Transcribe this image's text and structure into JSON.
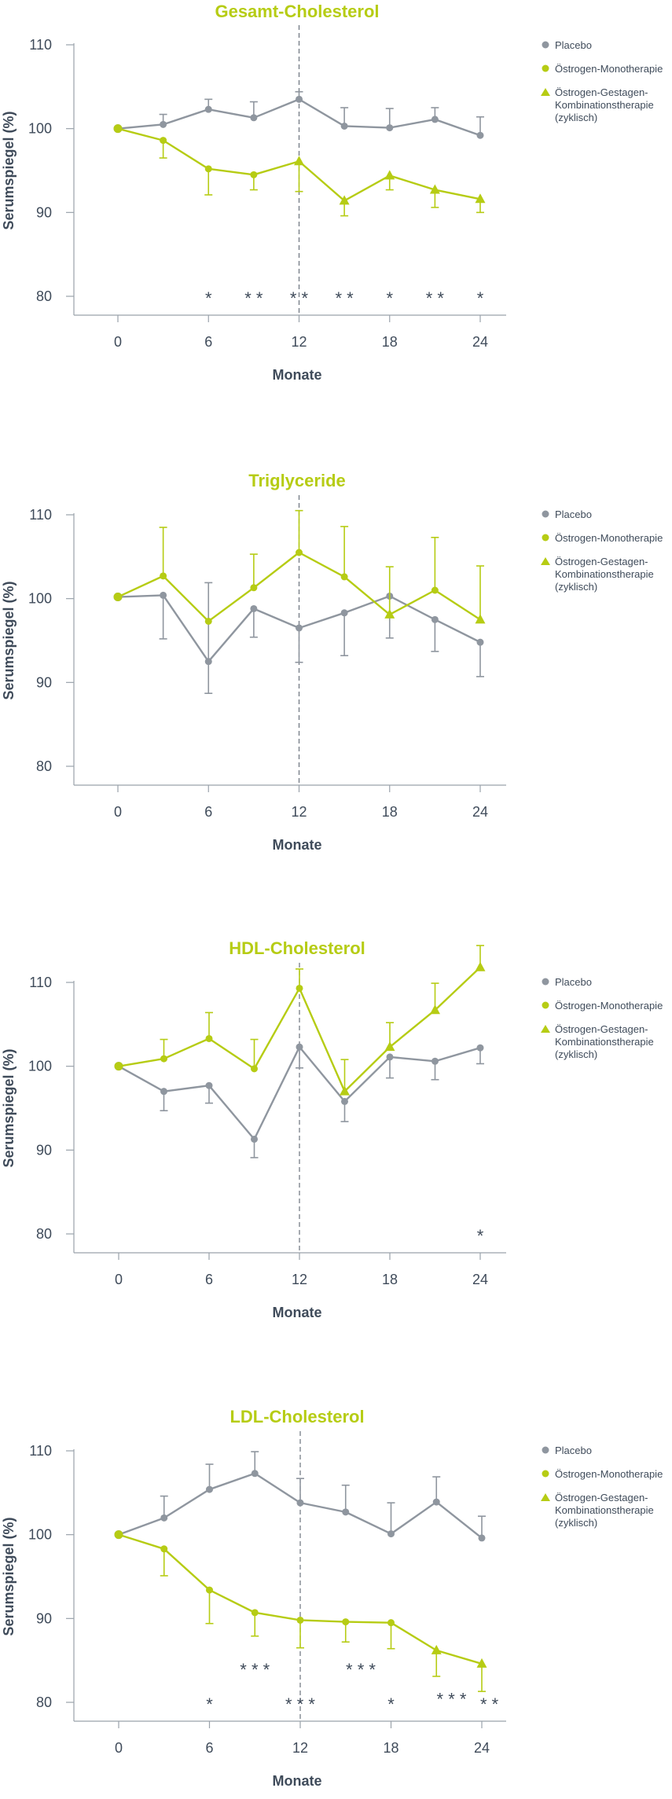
{
  "colors": {
    "placebo": "#8f969f",
    "estrogen": "#b6cc14",
    "axis": "#9aa2ab",
    "text": "#3f4b5a",
    "title": "#b6cc14"
  },
  "legend": {
    "placebo": "Placebo",
    "mono": "Östrogen-Monotherapie",
    "combo": [
      "Östrogen-Gestagen-",
      "Kombinationstherapie",
      "(zyklisch)"
    ]
  },
  "chart_data": [
    {
      "type": "line",
      "title": "Gesamt-Cholesterol",
      "xlabel": "Monate",
      "ylabel": "Serumspiegel (%)",
      "xlim": [
        0,
        24
      ],
      "ylim": [
        80,
        110
      ],
      "xticks": [
        0,
        6,
        12,
        18,
        24
      ],
      "yticks": [
        80,
        90,
        100,
        110
      ],
      "x": [
        0,
        3,
        6,
        9,
        12,
        15,
        18,
        21,
        24
      ],
      "series": [
        {
          "name": "Placebo",
          "values": [
            100,
            100.5,
            102.3,
            101.3,
            103.5,
            100.3,
            100.1,
            101.1,
            99.2
          ],
          "err_up": [
            0,
            1.2,
            1.2,
            1.9,
            0.9,
            2.2,
            2.3,
            1.4,
            2.2
          ],
          "err_down": [
            0,
            0,
            0,
            0,
            0,
            0,
            0,
            0,
            0
          ]
        },
        {
          "name": "Östrogen-Monotherapie / Östrogen-Gestagen-Kombinationstherapie (zyklisch)",
          "values": [
            100,
            98.6,
            95.2,
            94.5,
            96.1,
            91.4,
            94.4,
            92.7,
            91.6
          ],
          "err_up": [
            0,
            0,
            0,
            0,
            0,
            0,
            0,
            0,
            0
          ],
          "err_down": [
            0,
            2.1,
            3.1,
            1.8,
            3.6,
            1.8,
            1.7,
            2.1,
            1.6
          ],
          "markers": [
            "circle",
            "circle",
            "circle",
            "circle",
            "triangle",
            "triangle",
            "triangle",
            "triangle",
            "triangle"
          ]
        }
      ],
      "annotations": [
        {
          "x": 6,
          "y": 80.3,
          "text": "*"
        },
        {
          "x": 9,
          "y": 80.3,
          "text": "* *"
        },
        {
          "x": 12,
          "y": 80.3,
          "text": "* *"
        },
        {
          "x": 15,
          "y": 80.3,
          "text": "* *"
        },
        {
          "x": 18,
          "y": 80.3,
          "text": "*"
        },
        {
          "x": 21,
          "y": 80.3,
          "text": "* *"
        },
        {
          "x": 24,
          "y": 80.3,
          "text": "*"
        }
      ]
    },
    {
      "type": "line",
      "title": "Triglyceride",
      "xlabel": "Monate",
      "ylabel": "Serumspiegel (%)",
      "xlim": [
        0,
        24
      ],
      "ylim": [
        80,
        110
      ],
      "xticks": [
        0,
        6,
        12,
        18,
        24
      ],
      "yticks": [
        80,
        90,
        100,
        110
      ],
      "x": [
        0,
        3,
        6,
        9,
        12,
        15,
        18,
        21,
        24
      ],
      "series": [
        {
          "name": "Placebo",
          "values": [
            100.2,
            100.4,
            92.5,
            98.8,
            96.5,
            98.3,
            100.3,
            97.5,
            94.8
          ],
          "err_up": [
            0,
            0,
            9.4,
            0,
            0,
            0,
            0,
            0,
            0
          ],
          "err_down": [
            0,
            5.2,
            3.8,
            3.4,
            4.1,
            5.1,
            5.0,
            3.8,
            4.1
          ]
        },
        {
          "name": "Östrogen-Monotherapie / Östrogen-Gestagen-Kombinationstherapie (zyklisch)",
          "values": [
            100.2,
            102.7,
            97.3,
            101.3,
            105.5,
            102.6,
            98.1,
            101.0,
            97.5
          ],
          "err_up": [
            0,
            5.8,
            0,
            4.0,
            5.0,
            6.0,
            5.7,
            6.3,
            6.4
          ],
          "err_down": [
            0,
            0,
            0,
            0,
            0,
            0,
            0,
            0,
            0
          ],
          "markers": [
            "circle",
            "circle",
            "circle",
            "circle",
            "circle",
            "circle",
            "triangle",
            "circle",
            "triangle"
          ]
        }
      ],
      "annotations": []
    },
    {
      "type": "line",
      "title": "HDL-Cholesterol",
      "xlabel": "Monate",
      "ylabel": "Serumspiegel (%)",
      "xlim": [
        0,
        24
      ],
      "ylim": [
        80,
        110
      ],
      "xticks": [
        0,
        6,
        12,
        18,
        24
      ],
      "yticks": [
        80,
        90,
        100,
        110
      ],
      "x": [
        0,
        3,
        6,
        9,
        12,
        15,
        18,
        21,
        24
      ],
      "series": [
        {
          "name": "Placebo",
          "values": [
            100,
            97.0,
            97.7,
            91.3,
            102.3,
            95.8,
            101.1,
            100.6,
            102.2
          ],
          "err_up": [
            0,
            0,
            0,
            0,
            0,
            0,
            0,
            0,
            0
          ],
          "err_down": [
            0,
            2.3,
            2.1,
            2.2,
            2.5,
            2.4,
            2.5,
            2.2,
            1.9
          ]
        },
        {
          "name": "Östrogen-Monotherapie / Östrogen-Gestagen-Kombinationstherapie (zyklisch)",
          "values": [
            100,
            100.9,
            103.3,
            99.7,
            109.3,
            97.0,
            102.3,
            106.7,
            111.8
          ],
          "err_up": [
            0,
            2.3,
            3.1,
            3.5,
            2.3,
            3.8,
            2.9,
            3.2,
            2.6
          ],
          "err_down": [
            0,
            0,
            0,
            0,
            0,
            0,
            0,
            0,
            0
          ],
          "markers": [
            "circle",
            "circle",
            "circle",
            "circle",
            "circle",
            "triangle",
            "triangle",
            "triangle",
            "triangle"
          ]
        }
      ],
      "annotations": [
        {
          "x": 24,
          "y": 80.3,
          "text": "*"
        }
      ]
    },
    {
      "type": "line",
      "title": "LDL-Cholesterol",
      "xlabel": "Monate",
      "ylabel": "Serumspiegel (%)",
      "xlim": [
        0,
        24
      ],
      "ylim": [
        80,
        110
      ],
      "xticks": [
        0,
        6,
        12,
        18,
        24
      ],
      "yticks": [
        80,
        90,
        100,
        110
      ],
      "x": [
        0,
        3,
        6,
        9,
        12,
        15,
        18,
        21,
        24
      ],
      "series": [
        {
          "name": "Placebo",
          "values": [
            100,
            102.0,
            105.4,
            107.3,
            103.8,
            102.7,
            100.1,
            103.9,
            99.6
          ],
          "err_up": [
            0,
            2.6,
            3.0,
            2.6,
            2.9,
            3.2,
            3.7,
            3.0,
            2.6
          ],
          "err_down": [
            0,
            0,
            0,
            0,
            0,
            0,
            0,
            0,
            0
          ]
        },
        {
          "name": "Östrogen-Monotherapie / Östrogen-Gestagen-Kombinationstherapie (zyklisch)",
          "values": [
            100,
            98.3,
            93.4,
            90.7,
            89.8,
            89.6,
            89.5,
            86.2,
            84.6
          ],
          "err_up": [
            0,
            0,
            0,
            0,
            0,
            0,
            0,
            0,
            0
          ],
          "err_down": [
            0,
            3.2,
            4.0,
            2.8,
            3.3,
            2.4,
            3.1,
            3.1,
            3.3
          ],
          "markers": [
            "circle",
            "circle",
            "circle",
            "circle",
            "circle",
            "circle",
            "circle",
            "triangle",
            "triangle"
          ]
        }
      ],
      "annotations": [
        {
          "x": 9,
          "y": 84.4,
          "text": "* * *"
        },
        {
          "x": 16,
          "y": 84.4,
          "text": "* * *"
        },
        {
          "x": 22,
          "y": 80.9,
          "text": "* * *"
        },
        {
          "x": 6,
          "y": 80.3,
          "text": "*"
        },
        {
          "x": 12,
          "y": 80.3,
          "text": "* * *"
        },
        {
          "x": 18,
          "y": 80.3,
          "text": "*"
        },
        {
          "x": 24.5,
          "y": 80.3,
          "text": "* *"
        }
      ]
    }
  ]
}
